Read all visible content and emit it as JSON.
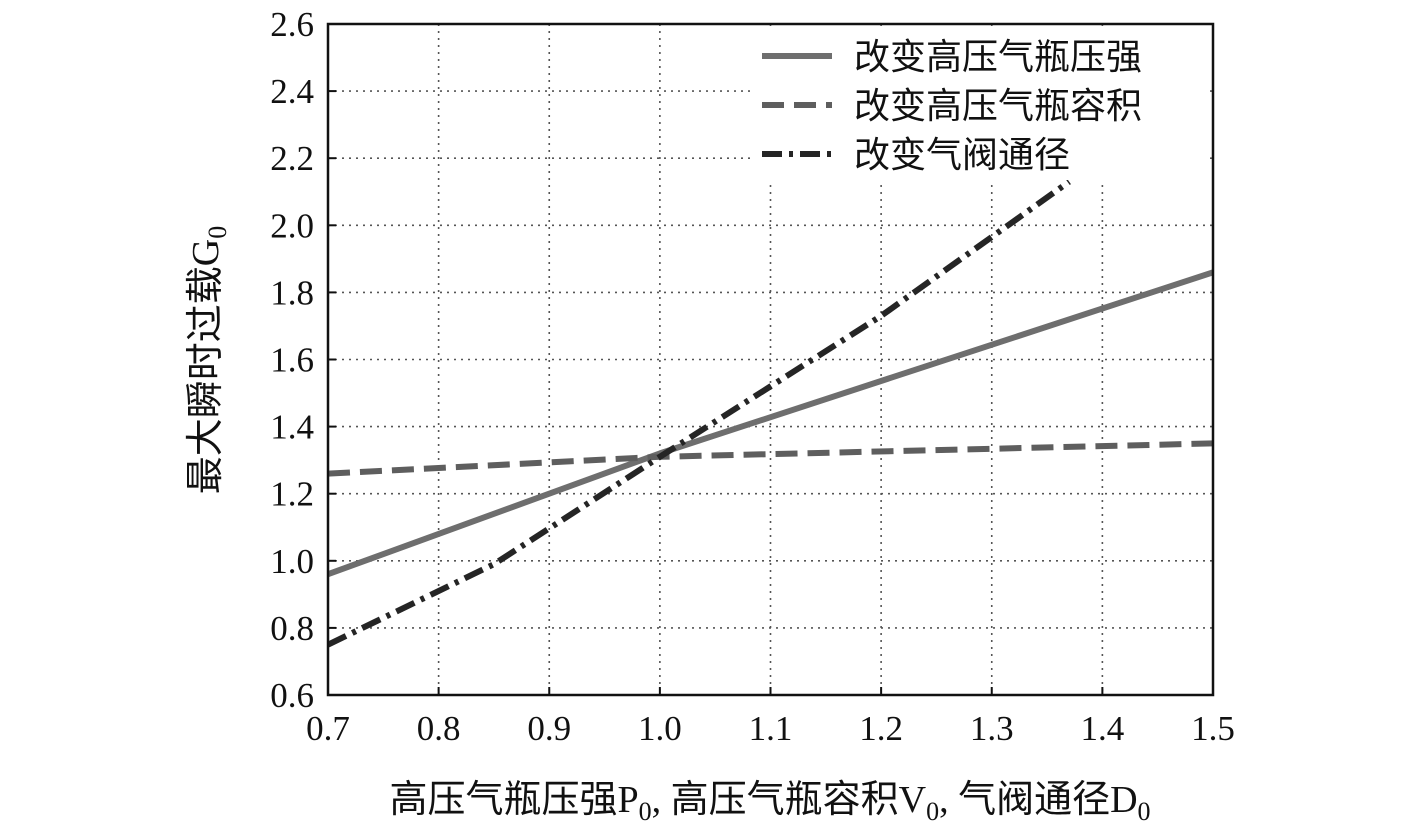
{
  "chart_data": {
    "type": "line",
    "ylabel": "最大瞬时过载G",
    "ylabel_sub": "0",
    "xlabel_parts": [
      {
        "text": "高压气瓶压强P",
        "sub": "0"
      },
      {
        "text": ", 高压气瓶容积V",
        "sub": "0"
      },
      {
        "text": ", 气阀通径D",
        "sub": "0"
      }
    ],
    "xlim": [
      0.7,
      1.5
    ],
    "ylim": [
      0.6,
      2.6
    ],
    "xticks": [
      "0.7",
      "0.8",
      "0.9",
      "1.0",
      "1.1",
      "1.2",
      "1.3",
      "1.4",
      "1.5"
    ],
    "yticks": [
      "0.6",
      "0.8",
      "1.0",
      "1.2",
      "1.4",
      "1.6",
      "1.8",
      "2.0",
      "2.2",
      "2.4",
      "2.6"
    ],
    "grid": true,
    "legend_position": "top-right",
    "series": [
      {
        "name": "改变高压气瓶压强",
        "style": "solid",
        "color": "#6e6e6e",
        "x": [
          0.7,
          1.0,
          1.5
        ],
        "y": [
          0.96,
          1.32,
          1.86
        ]
      },
      {
        "name": "改变高压气瓶容积",
        "style": "dashed",
        "color": "#5e5e5e",
        "x": [
          0.7,
          1.0,
          1.5
        ],
        "y": [
          1.26,
          1.31,
          1.35
        ]
      },
      {
        "name": "改变气阀通径",
        "style": "dashdot",
        "color": "#252525",
        "x": [
          0.7,
          0.85,
          1.0,
          1.2,
          1.37
        ],
        "y": [
          0.75,
          0.99,
          1.31,
          1.73,
          2.13
        ]
      }
    ]
  }
}
